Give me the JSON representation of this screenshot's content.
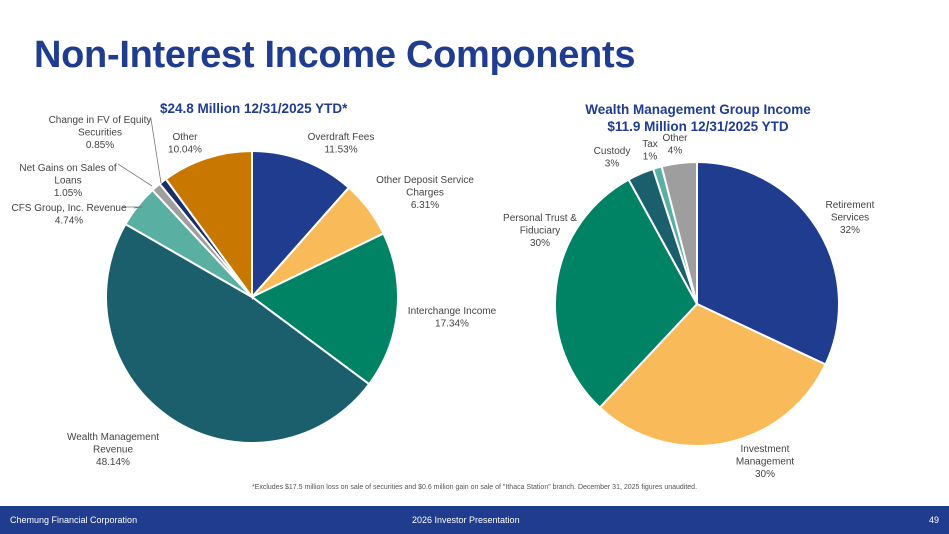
{
  "page": {
    "title": "Non-Interest Income Components",
    "footnote": "*Excludes $17.5 million loss on sale of securities and $0.6 million gain on sale of \"Ithaca Station\" branch.  December 31, 2025 figures unaudited.",
    "footer": {
      "left": "Chemung Financial Corporation",
      "center": "2026 Investor Presentation",
      "page_number": "49"
    }
  },
  "chart_data": [
    {
      "type": "pie",
      "title": "$24.8 Million 12/31/2025 YTD*",
      "slices": [
        {
          "label": [
            "Overdraft Fees",
            "11.53%"
          ],
          "value": 11.53,
          "color": "#1f3c8e"
        },
        {
          "label": [
            "Other Deposit Service",
            "Charges",
            "6.31%"
          ],
          "value": 6.31,
          "color": "#f9bb59"
        },
        {
          "label": [
            "Interchange Income",
            "17.34%"
          ],
          "value": 17.34,
          "color": "#008264"
        },
        {
          "label": [
            "Wealth Management",
            "Revenue",
            "48.14%"
          ],
          "value": 48.14,
          "color": "#1c5f6c"
        },
        {
          "label": [
            "CFS Group, Inc. Revenue",
            "4.74%"
          ],
          "value": 4.74,
          "color": "#5aafa3"
        },
        {
          "label": [
            "Net Gains on Sales of",
            "Loans",
            "1.05%"
          ],
          "value": 1.05,
          "color": "#9e9e9e"
        },
        {
          "label": [
            "Change in FV of Equity",
            "Securities",
            "0.85%"
          ],
          "value": 0.85,
          "color": "#1a2f6a"
        },
        {
          "label": [
            "Other",
            "10.04%"
          ],
          "value": 10.04,
          "color": "#c87800"
        }
      ]
    },
    {
      "type": "pie",
      "title": [
        "Wealth Management Group Income",
        "$11.9 Million 12/31/2025 YTD"
      ],
      "slices": [
        {
          "label": [
            "Retirement",
            "Services",
            "32%"
          ],
          "value": 32,
          "color": "#1f3c8e"
        },
        {
          "label": [
            "Investment",
            "Management",
            "30%"
          ],
          "value": 30,
          "color": "#f9bb59"
        },
        {
          "label": [
            "Personal Trust &",
            "Fiduciary",
            "30%"
          ],
          "value": 30,
          "color": "#008264"
        },
        {
          "label": [
            "Custody",
            "3%"
          ],
          "value": 3,
          "color": "#1c5f6c"
        },
        {
          "label": [
            "Tax",
            "1%"
          ],
          "value": 1,
          "color": "#5aafa3"
        },
        {
          "label": [
            "Other",
            "4%"
          ],
          "value": 4,
          "color": "#9e9e9e"
        }
      ]
    }
  ]
}
